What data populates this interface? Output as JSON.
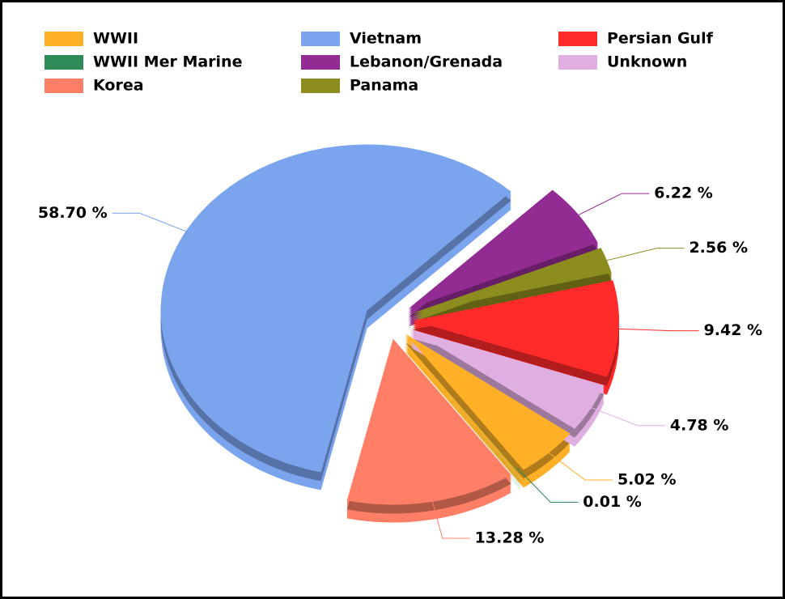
{
  "chart_data": {
    "type": "pie",
    "categories": [
      "WWII",
      "WWII Mer Marine",
      "Korea",
      "Vietnam",
      "Lebanon/Grenada",
      "Panama",
      "Persian Gulf",
      "Unknown"
    ],
    "values": [
      5.02,
      0.01,
      13.28,
      58.7,
      6.22,
      2.56,
      9.42,
      4.78
    ],
    "value_labels": [
      "5.02 %",
      "0.01 %",
      "13.28 %",
      "58.70 %",
      "6.22 %",
      "2.56 %",
      "9.42 %",
      "4.78 %"
    ],
    "colors": [
      "#FFB027",
      "#2E8B57",
      "#FF7F66",
      "#7BA4EE",
      "#922B92",
      "#8C8C1F",
      "#FF2A2A",
      "#E0AEE0"
    ],
    "legend": "top"
  }
}
